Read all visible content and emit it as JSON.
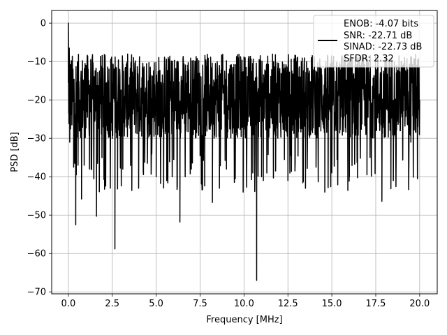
{
  "chart_data": {
    "type": "line",
    "xlabel": "Frequency [MHz]",
    "ylabel": "PSD [dB]",
    "xlim": [
      -0.95,
      21.0
    ],
    "ylim": [
      -70.5,
      3.3
    ],
    "xticks": [
      0.0,
      2.5,
      5.0,
      7.5,
      10.0,
      12.5,
      15.0,
      17.5,
      20.0
    ],
    "xtick_labels": [
      "0.0",
      "2.5",
      "5.0",
      "7.5",
      "10.0",
      "12.5",
      "15.0",
      "17.5",
      "20.0"
    ],
    "yticks": [
      0,
      -10,
      -20,
      -30,
      -40,
      -50,
      -60,
      -70
    ],
    "ytick_labels": [
      "0",
      "−10",
      "−20",
      "−30",
      "−40",
      "−50",
      "−60",
      "−70"
    ],
    "grid": true,
    "legend": {
      "placement": "top-right",
      "entries": [
        "ENOB: -4.07 bits",
        "SNR: -22.71 dB",
        "SINAD: -22.73 dB",
        "SFDR: 2.32"
      ]
    },
    "series": [
      {
        "color": "#000000",
        "typical_range_db": [
          -30,
          -8
        ],
        "x": [
          0.0,
          0.02,
          0.05,
          0.08,
          0.12,
          0.3,
          0.42,
          0.55,
          0.65,
          0.75,
          0.9,
          1.0,
          1.2,
          1.6,
          2.5,
          2.65,
          2.8,
          3.1,
          3.3,
          4.0,
          4.5,
          5.0,
          5.6,
          6.0,
          6.35,
          7.0,
          7.6,
          8.2,
          8.6,
          9.0,
          9.5,
          9.95,
          10.5,
          10.72,
          11.0,
          11.1,
          11.8,
          12.5,
          12.9,
          13.5,
          14.1,
          14.6,
          15.0,
          15.3,
          16.0,
          17.0,
          17.85,
          18.5,
          19.5,
          19.9,
          20.0
        ],
        "y": [
          0.0,
          -23.5,
          -6.5,
          -31.0,
          -14.0,
          -37.5,
          -52.5,
          -37.0,
          -28.0,
          -45.8,
          -37.0,
          -11.0,
          -38.0,
          -50.3,
          -30.0,
          -58.8,
          -43.2,
          -38.0,
          -10.7,
          -43.0,
          -36.5,
          -40.0,
          -41.0,
          -35.5,
          -51.8,
          -38.0,
          -41.0,
          -46.7,
          -43.0,
          -38.0,
          -40.5,
          -44.0,
          -39.0,
          -67.0,
          -40.0,
          -41.0,
          -38.5,
          -41.0,
          -38.5,
          -43.0,
          -37.5,
          -44.0,
          -39.0,
          -35.5,
          -40.0,
          -39.5,
          -46.4,
          -41.0,
          -31.0,
          -27.0,
          -20.0
        ]
      }
    ]
  }
}
